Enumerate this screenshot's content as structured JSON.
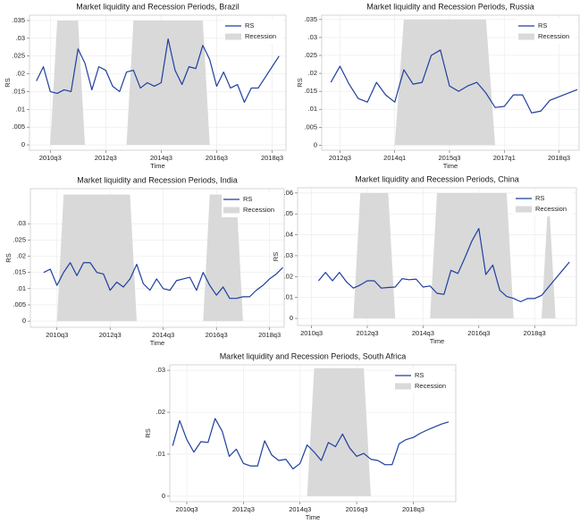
{
  "chart_data": [
    {
      "type": "line",
      "title": "Market liquidity and Recession Periods, Brazil",
      "xlabel": "Time",
      "ylabel": "RS",
      "x": [
        2010,
        2010.25,
        2010.5,
        2010.75,
        2011,
        2011.25,
        2011.5,
        2011.75,
        2012,
        2012.25,
        2012.5,
        2012.75,
        2013,
        2013.25,
        2013.5,
        2013.75,
        2014,
        2014.25,
        2014.5,
        2014.75,
        2015,
        2015.25,
        2015.5,
        2015.75,
        2016,
        2016.25,
        2016.5,
        2016.75,
        2017,
        2017.25,
        2017.5,
        2017.75,
        2018,
        2018.25,
        2018.5,
        2018.75
      ],
      "series": [
        {
          "name": "RS",
          "type": "line",
          "color": "#1f3f9e",
          "values": [
            0.018,
            0.022,
            0.015,
            0.0145,
            0.0155,
            0.015,
            0.027,
            0.023,
            0.0155,
            0.022,
            0.021,
            0.0165,
            0.015,
            0.0205,
            0.021,
            0.016,
            0.0175,
            0.0165,
            0.0175,
            0.0298,
            0.021,
            0.017,
            0.022,
            0.0215,
            0.028,
            0.024,
            0.0165,
            0.0205,
            0.016,
            0.017,
            0.012,
            0.016,
            0.016,
            0.019,
            0.022,
            0.025
          ]
        },
        {
          "name": "Recession",
          "type": "area",
          "color": "#d9d9d9",
          "values": [
            0,
            0,
            0,
            0.035,
            0.035,
            0.035,
            0.035,
            0,
            0,
            0,
            0,
            0,
            0,
            0,
            0.035,
            0.035,
            0.035,
            0.035,
            0.035,
            0.035,
            0.035,
            0.035,
            0.035,
            0.035,
            0.035,
            0,
            0,
            0,
            0,
            0,
            0,
            0,
            0,
            0,
            0,
            0
          ]
        }
      ],
      "xlim": [
        2009.75,
        2019
      ],
      "ylim": [
        -0.0015,
        0.0365
      ],
      "xticks": [
        {
          "value": 2010.5,
          "label": "2010q3"
        },
        {
          "value": 2012.5,
          "label": "2012q3"
        },
        {
          "value": 2014.5,
          "label": "2014q3"
        },
        {
          "value": 2016.5,
          "label": "2016q3"
        },
        {
          "value": 2018.5,
          "label": "2018q3"
        }
      ],
      "yticks": [
        0,
        {
          "value": 0.005,
          "label": ".005"
        },
        {
          "value": 0.01,
          "label": ".01"
        },
        {
          "value": 0.015,
          "label": ".015"
        },
        {
          "value": 0.02,
          "label": ".02"
        },
        {
          "value": 0.025,
          "label": ".025"
        },
        {
          "value": 0.03,
          "label": ".03"
        },
        {
          "value": 0.035,
          "label": ".035"
        }
      ],
      "grid": true,
      "legend": "top-right"
    },
    {
      "type": "line",
      "title": "Market liquidity and Recession Periods, Russia",
      "xlabel": "Time",
      "ylabel": "RS",
      "x": [
        2012.25,
        2012.5,
        2012.75,
        2013,
        2013.25,
        2013.5,
        2013.75,
        2014,
        2014.25,
        2014.5,
        2014.75,
        2015,
        2015.25,
        2015.5,
        2015.75,
        2016,
        2016.25,
        2016.5,
        2016.75,
        2017,
        2017.25,
        2017.5,
        2017.75,
        2018,
        2018.25,
        2018.5,
        2018.75,
        2019
      ],
      "series": [
        {
          "name": "RS",
          "type": "line",
          "color": "#1f3f9e",
          "values": [
            0.0175,
            0.022,
            0.017,
            0.013,
            0.012,
            0.0175,
            0.014,
            0.012,
            0.021,
            0.017,
            0.0175,
            0.025,
            0.0265,
            0.0165,
            0.015,
            0.0165,
            0.0175,
            0.0145,
            0.0105,
            0.0108,
            0.014,
            0.014,
            0.009,
            0.0095,
            0.0125,
            0.0135,
            0.0145,
            0.0155
          ]
        },
        {
          "name": "Recession",
          "type": "area",
          "color": "#d9d9d9",
          "values": [
            0,
            0,
            0,
            0,
            0,
            0,
            0,
            0,
            0.035,
            0.035,
            0.035,
            0.035,
            0.035,
            0.035,
            0.035,
            0.035,
            0.035,
            0.035,
            0,
            0,
            0,
            0,
            0,
            0,
            0,
            0,
            0,
            0
          ]
        }
      ],
      "xlim": [
        2012,
        2019.05
      ],
      "ylim": [
        -0.0014,
        0.0362
      ],
      "xticks": [
        {
          "value": 2012.5,
          "label": "2012q3"
        },
        {
          "value": 2014,
          "label": "2014q1"
        },
        {
          "value": 2015.5,
          "label": "2015q3"
        },
        {
          "value": 2017,
          "label": "2017q1"
        },
        {
          "value": 2018.5,
          "label": "2018q3"
        }
      ],
      "yticks": [
        0,
        {
          "value": 0.005,
          "label": ".005"
        },
        {
          "value": 0.01,
          "label": ".01"
        },
        {
          "value": 0.015,
          "label": ".015"
        },
        {
          "value": 0.02,
          "label": ".02"
        },
        {
          "value": 0.025,
          "label": ".025"
        },
        {
          "value": 0.03,
          "label": ".03"
        },
        {
          "value": 0.035,
          "label": ".035"
        }
      ],
      "grid": true,
      "legend": "top-right"
    },
    {
      "type": "line",
      "title": "Market liquidity and Recession Periods, India",
      "xlabel": "Time",
      "ylabel": "RS",
      "x": [
        2010,
        2010.25,
        2010.5,
        2010.75,
        2011,
        2011.25,
        2011.5,
        2011.75,
        2012,
        2012.25,
        2012.5,
        2012.75,
        2013,
        2013.25,
        2013.5,
        2013.75,
        2014,
        2014.25,
        2014.5,
        2014.75,
        2015,
        2015.25,
        2015.5,
        2015.75,
        2016,
        2016.25,
        2016.5,
        2016.75,
        2017,
        2017.25,
        2017.5,
        2017.75,
        2018,
        2018.25,
        2018.5,
        2018.75,
        2019
      ],
      "series": [
        {
          "name": "RS",
          "type": "line",
          "color": "#1f3f9e",
          "values": [
            0.015,
            0.016,
            0.011,
            0.015,
            0.018,
            0.014,
            0.018,
            0.018,
            0.015,
            0.0145,
            0.0095,
            0.012,
            0.0105,
            0.013,
            0.0175,
            0.0115,
            0.0095,
            0.013,
            0.01,
            0.0095,
            0.0125,
            0.013,
            0.0135,
            0.0095,
            0.015,
            0.011,
            0.008,
            0.0105,
            0.007,
            0.007,
            0.0075,
            0.0075,
            0.0095,
            0.011,
            0.013,
            0.0145,
            0.0165
          ]
        },
        {
          "name": "Recession",
          "type": "area",
          "color": "#d9d9d9",
          "values": [
            0,
            0,
            0,
            0.039,
            0.039,
            0.039,
            0.039,
            0.039,
            0.039,
            0.039,
            0.039,
            0.039,
            0.039,
            0.039,
            0,
            0,
            0,
            0,
            0,
            0,
            0,
            0,
            0,
            0,
            0,
            0.039,
            0.039,
            0.039,
            0.039,
            0.039,
            0,
            0,
            0,
            0,
            0,
            0,
            0
          ]
        }
      ],
      "xlim": [
        2009.5,
        2019.05
      ],
      "ylim": [
        -0.0019,
        0.0408
      ],
      "xticks": [
        {
          "value": 2010.5,
          "label": "2010q3"
        },
        {
          "value": 2012.5,
          "label": "2012q3"
        },
        {
          "value": 2014.5,
          "label": "2014q3"
        },
        {
          "value": 2016.5,
          "label": "2016q3"
        },
        {
          "value": 2018.5,
          "label": "2018q3"
        }
      ],
      "yticks": [
        0,
        {
          "value": 0.005,
          "label": ".005"
        },
        {
          "value": 0.01,
          "label": ".01"
        },
        {
          "value": 0.015,
          "label": ".015"
        },
        {
          "value": 0.02,
          "label": ".02"
        },
        {
          "value": 0.025,
          "label": ".025"
        },
        {
          "value": 0.03,
          "label": ".03"
        }
      ],
      "grid": true,
      "legend": "top-right"
    },
    {
      "type": "line",
      "title": "Market liquidity and Recession Periods, China",
      "xlabel": "Time",
      "ylabel": "RS",
      "x": [
        2010.75,
        2011,
        2011.25,
        2011.5,
        2011.75,
        2012,
        2012.25,
        2012.5,
        2012.75,
        2013,
        2013.25,
        2013.5,
        2013.75,
        2014,
        2014.25,
        2014.5,
        2014.75,
        2015,
        2015.25,
        2015.5,
        2015.75,
        2016,
        2016.25,
        2016.5,
        2016.75,
        2017,
        2017.25,
        2017.5,
        2017.75,
        2018,
        2018.25,
        2018.5,
        2018.75,
        2019,
        2019.25,
        2019.5,
        2019.75
      ],
      "series": [
        {
          "name": "RS",
          "type": "line",
          "color": "#1f3f9e",
          "values": [
            0.018,
            0.022,
            0.018,
            0.022,
            0.0175,
            0.0145,
            0.016,
            0.018,
            0.018,
            0.0145,
            0.0148,
            0.015,
            0.019,
            0.0185,
            0.0188,
            0.015,
            0.0155,
            0.012,
            0.0115,
            0.023,
            0.0215,
            0.029,
            0.037,
            0.043,
            0.021,
            0.0255,
            0.0135,
            0.0105,
            0.0095,
            0.008,
            0.0095,
            0.0095,
            0.011,
            0.015,
            0.019,
            0.023,
            0.027
          ]
        },
        {
          "name": "Recession",
          "type": "area",
          "color": "#d9d9d9",
          "values": [
            0,
            0,
            0,
            0,
            0,
            0,
            0.06,
            0.06,
            0.06,
            0.06,
            0.06,
            0,
            0,
            0,
            0,
            0,
            0,
            0.06,
            0.06,
            0.06,
            0.06,
            0.06,
            0.06,
            0.06,
            0.06,
            0.06,
            0.06,
            0.06,
            0,
            0,
            0,
            0,
            0,
            0.06,
            0,
            0,
            0
          ]
        }
      ],
      "xlim": [
        2010,
        2020
      ],
      "ylim": [
        -0.0034,
        0.0625
      ],
      "xticks": [
        {
          "value": 2010.5,
          "label": "2010q3"
        },
        {
          "value": 2012.5,
          "label": "2012q3"
        },
        {
          "value": 2014.5,
          "label": "2014q3"
        },
        {
          "value": 2016.5,
          "label": "2016q3"
        },
        {
          "value": 2018.5,
          "label": "2018q3"
        }
      ],
      "yticks": [
        0,
        {
          "value": 0.01,
          "label": ".01"
        },
        {
          "value": 0.02,
          "label": ".02"
        },
        {
          "value": 0.03,
          "label": ".03"
        },
        {
          "value": 0.04,
          "label": ".04"
        },
        {
          "value": 0.05,
          "label": ".05"
        },
        {
          "value": 0.06,
          "label": ".06"
        }
      ],
      "grid": true,
      "legend": "top-right"
    },
    {
      "type": "line",
      "title": "Market liquidity and Recession Periods, South Africa",
      "xlabel": "Time",
      "ylabel": "RS",
      "x": [
        2010,
        2010.25,
        2010.5,
        2010.75,
        2011,
        2011.25,
        2011.5,
        2011.75,
        2012,
        2012.25,
        2012.5,
        2012.75,
        2013,
        2013.25,
        2013.5,
        2013.75,
        2014,
        2014.25,
        2014.5,
        2014.75,
        2015,
        2015.25,
        2015.5,
        2015.75,
        2016,
        2016.25,
        2016.5,
        2016.75,
        2017,
        2017.25,
        2017.5,
        2017.75,
        2018,
        2018.25,
        2018.5,
        2018.75,
        2019,
        2019.25,
        2019.5,
        2019.75
      ],
      "series": [
        {
          "name": "RS",
          "type": "line",
          "color": "#1f3f9e",
          "values": [
            0.012,
            0.018,
            0.0135,
            0.0105,
            0.013,
            0.0128,
            0.0185,
            0.0155,
            0.0095,
            0.0112,
            0.0078,
            0.0072,
            0.0072,
            0.0132,
            0.0098,
            0.0085,
            0.0088,
            0.0065,
            0.0078,
            0.0122,
            0.0105,
            0.0085,
            0.0128,
            0.0118,
            0.0148,
            0.0115,
            0.0095,
            0.0102,
            0.0088,
            0.0085,
            0.0075,
            0.0075,
            0.0125,
            0.0135,
            0.014,
            0.015,
            0.0158,
            0.0165,
            0.0172,
            0.0177
          ]
        },
        {
          "name": "Recession",
          "type": "area",
          "color": "#d9d9d9",
          "values": [
            0,
            0,
            0,
            0,
            0,
            0,
            0,
            0,
            0,
            0,
            0,
            0,
            0,
            0,
            0,
            0,
            0,
            0,
            0,
            0,
            0.0305,
            0.0305,
            0.0305,
            0.0305,
            0.0305,
            0.0305,
            0.0305,
            0.0305,
            0,
            0,
            0,
            0,
            0,
            0,
            0,
            0,
            0,
            0,
            0,
            0
          ]
        }
      ],
      "xlim": [
        2009.9,
        2020
      ],
      "ylim": [
        -0.0013,
        0.0313
      ],
      "xticks": [
        {
          "value": 2010.5,
          "label": "2010q3"
        },
        {
          "value": 2012.5,
          "label": "2012q3"
        },
        {
          "value": 2014.5,
          "label": "2014q3"
        },
        {
          "value": 2016.5,
          "label": "2016q3"
        },
        {
          "value": 2018.5,
          "label": "2018q3"
        }
      ],
      "yticks": [
        0,
        {
          "value": 0.01,
          "label": ".01"
        },
        {
          "value": 0.02,
          "label": ".02"
        },
        {
          "value": 0.03,
          "label": ".03"
        }
      ],
      "grid": true,
      "legend": "top-right"
    }
  ]
}
